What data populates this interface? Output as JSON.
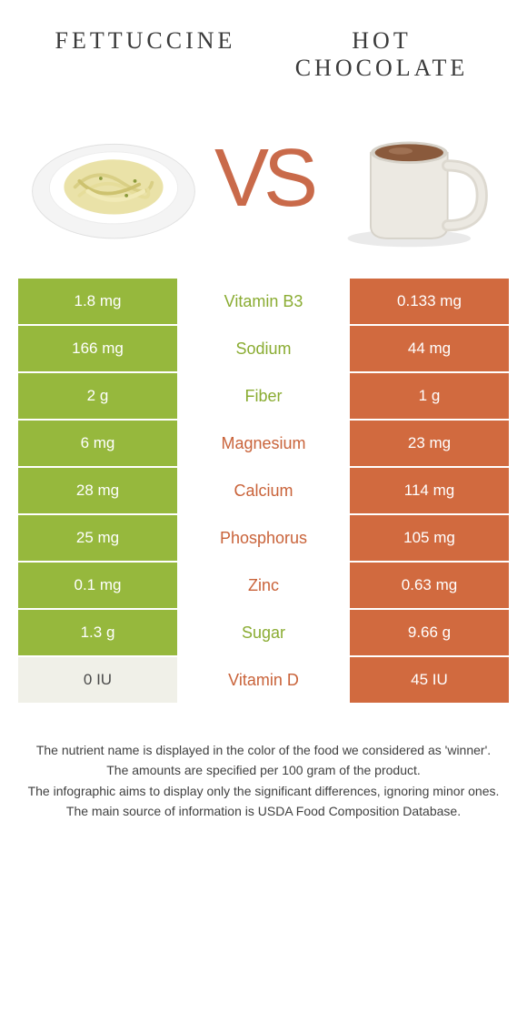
{
  "food_left": {
    "name": "FETTUCCINE"
  },
  "food_right": {
    "name": "HOT CHOCOLATE"
  },
  "vs_label": "VS",
  "colors": {
    "left_bg": "#96b83d",
    "left_bg_alt": "#f0f0e8",
    "left_bg_alt_text": "#4a4a4a",
    "right_bg": "#d16a3f",
    "mid_bg": "#ffffff",
    "winner_left_text": "#8aac32",
    "winner_right_text": "#c9633a"
  },
  "rows": [
    {
      "nutrient": "Vitamin B3",
      "left": "1.8 mg",
      "right": "0.133 mg",
      "winner": "left"
    },
    {
      "nutrient": "Sodium",
      "left": "166 mg",
      "right": "44 mg",
      "winner": "left"
    },
    {
      "nutrient": "Fiber",
      "left": "2 g",
      "right": "1 g",
      "winner": "left"
    },
    {
      "nutrient": "Magnesium",
      "left": "6 mg",
      "right": "23 mg",
      "winner": "right"
    },
    {
      "nutrient": "Calcium",
      "left": "28 mg",
      "right": "114 mg",
      "winner": "right"
    },
    {
      "nutrient": "Phosphorus",
      "left": "25 mg",
      "right": "105 mg",
      "winner": "right"
    },
    {
      "nutrient": "Zinc",
      "left": "0.1 mg",
      "right": "0.63 mg",
      "winner": "right"
    },
    {
      "nutrient": "Sugar",
      "left": "1.3 g",
      "right": "9.66 g",
      "winner": "left"
    },
    {
      "nutrient": "Vitamin D",
      "left": "0 IU",
      "right": "45 IU",
      "winner": "right",
      "left_alt_bg": true
    }
  ],
  "footnotes": [
    "The nutrient name is displayed in the color of the food we considered as 'winner'.",
    "The amounts are specified per 100 gram of the product.",
    "The infographic aims to display only the significant differences, ignoring minor ones.",
    "The main source of information is USDA Food Composition Database."
  ]
}
